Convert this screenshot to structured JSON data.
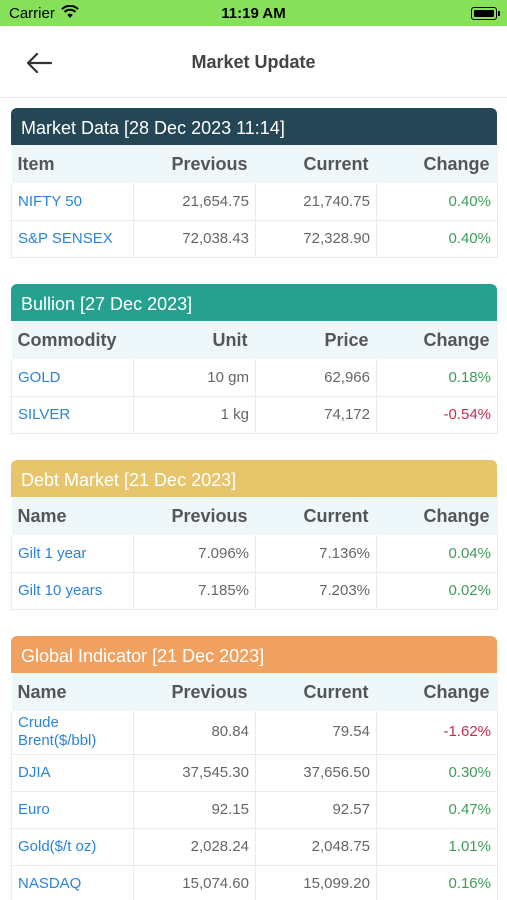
{
  "status_bar": {
    "carrier": "Carrier",
    "time": "11:19 AM"
  },
  "nav": {
    "title": "Market Update",
    "back_icon": "arrow-left-icon"
  },
  "colors": {
    "status_bar": "#86e05a",
    "market_data": "#254655",
    "bullion": "#26a08f",
    "debt_market": "#e7c56b",
    "global_indicator": "#f1a15f",
    "positive": "#3f9b5b",
    "negative": "#c0304e",
    "link": "#2b84d8"
  },
  "sections": [
    {
      "title": "Market Data [28 Dec 2023 11:14]",
      "columns": [
        "Item",
        "Previous",
        "Current",
        "Change"
      ],
      "rows": [
        {
          "name": "NIFTY 50",
          "c2": "21,654.75",
          "c3": "21,740.75",
          "change": "0.40%"
        },
        {
          "name": "S&P SENSEX",
          "c2": "72,038.43",
          "c3": "72,328.90",
          "change": "0.40%"
        }
      ]
    },
    {
      "title": "Bullion [27 Dec 2023]",
      "columns": [
        "Commodity",
        "Unit",
        "Price",
        "Change"
      ],
      "rows": [
        {
          "name": "GOLD",
          "c2": "10 gm",
          "c3": "62,966",
          "change": "0.18%"
        },
        {
          "name": "SILVER",
          "c2": "1 kg",
          "c3": "74,172",
          "change": "-0.54%"
        }
      ]
    },
    {
      "title": "Debt Market [21 Dec 2023]",
      "columns": [
        "Name",
        "Previous",
        "Current",
        "Change"
      ],
      "rows": [
        {
          "name": "Gilt 1 year",
          "c2": "7.096%",
          "c3": "7.136%",
          "change": "0.04%"
        },
        {
          "name": "Gilt 10 years",
          "c2": "7.185%",
          "c3": "7.203%",
          "change": "0.02%"
        }
      ]
    },
    {
      "title": "Global Indicator [21 Dec 2023]",
      "columns": [
        "Name",
        "Previous",
        "Current",
        "Change"
      ],
      "rows": [
        {
          "name": "Crude Brent($/bbl)",
          "c2": "80.84",
          "c3": "79.54",
          "change": "-1.62%"
        },
        {
          "name": "DJIA",
          "c2": "37,545.30",
          "c3": "37,656.50",
          "change": "0.30%"
        },
        {
          "name": "Euro",
          "c2": "92.15",
          "c3": "92.57",
          "change": "0.47%"
        },
        {
          "name": "Gold($/t oz)",
          "c2": "2,028.24",
          "c3": "2,048.75",
          "change": "1.01%"
        },
        {
          "name": "NASDAQ",
          "c2": "15,074.60",
          "c3": "15,099.20",
          "change": "0.16%"
        }
      ]
    }
  ]
}
